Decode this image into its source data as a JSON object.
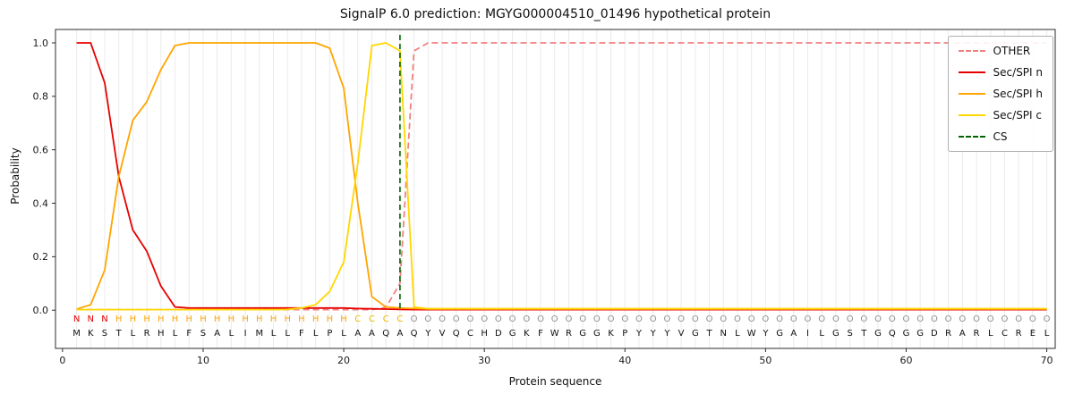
{
  "chart_data": {
    "type": "line",
    "title": "SignalP 6.0 prediction: MGYG000004510_01496 hypothetical protein",
    "xlabel": "Protein sequence",
    "ylabel": "Probability",
    "xlim": [
      -0.5,
      70.6
    ],
    "ylim": [
      -0.143,
      1.05
    ],
    "xticks": [
      0,
      10,
      20,
      30,
      40,
      50,
      60,
      70
    ],
    "yticks": [
      0.0,
      0.2,
      0.4,
      0.6,
      0.8,
      1.0
    ],
    "grid": "vertical-line-per-residue",
    "legend_position": "upper right",
    "positions": [
      1,
      2,
      3,
      4,
      5,
      6,
      7,
      8,
      9,
      10,
      11,
      12,
      13,
      14,
      15,
      16,
      17,
      18,
      19,
      20,
      21,
      22,
      23,
      24,
      25,
      26,
      27,
      28,
      29,
      30,
      31,
      32,
      33,
      34,
      35,
      36,
      37,
      38,
      39,
      40,
      41,
      42,
      43,
      44,
      45,
      46,
      47,
      48,
      49,
      50,
      51,
      52,
      53,
      54,
      55,
      56,
      57,
      58,
      59,
      60,
      61,
      62,
      63,
      64,
      65,
      66,
      67,
      68,
      69,
      70
    ],
    "series": [
      {
        "name": "OTHER",
        "color": "#f08080",
        "style": "dashed",
        "values": [
          0.002,
          0.002,
          0.002,
          0.002,
          0.002,
          0.002,
          0.002,
          0.002,
          0.002,
          0.002,
          0.002,
          0.002,
          0.002,
          0.002,
          0.002,
          0.002,
          0.002,
          0.002,
          0.002,
          0.002,
          0.002,
          0.002,
          0.01,
          0.1,
          0.97,
          1.0,
          1.0,
          1.0,
          1.0,
          1.0,
          1.0,
          1.0,
          1.0,
          1.0,
          1.0,
          1.0,
          1.0,
          1.0,
          1.0,
          1.0,
          1.0,
          1.0,
          1.0,
          1.0,
          1.0,
          1.0,
          1.0,
          1.0,
          1.0,
          1.0,
          1.0,
          1.0,
          1.0,
          1.0,
          1.0,
          1.0,
          1.0,
          1.0,
          1.0,
          1.0,
          1.0,
          1.0,
          1.0,
          1.0,
          1.0,
          1.0,
          1.0,
          1.0,
          1.0,
          1.0
        ]
      },
      {
        "name": "Sec/SPI n",
        "color": "#e60000",
        "style": "solid",
        "values": [
          1.0,
          1.0,
          0.85,
          0.5,
          0.3,
          0.22,
          0.09,
          0.012,
          0.008,
          0.008,
          0.008,
          0.008,
          0.008,
          0.008,
          0.008,
          0.008,
          0.008,
          0.008,
          0.008,
          0.008,
          0.006,
          0.005,
          0.004,
          0.003,
          0.002,
          0.002,
          0.002,
          0.002,
          0.002,
          0.002,
          0.002,
          0.002,
          0.002,
          0.002,
          0.002,
          0.002,
          0.002,
          0.002,
          0.002,
          0.002,
          0.002,
          0.002,
          0.002,
          0.002,
          0.002,
          0.002,
          0.002,
          0.002,
          0.002,
          0.002,
          0.002,
          0.002,
          0.002,
          0.002,
          0.002,
          0.002,
          0.002,
          0.002,
          0.002,
          0.002,
          0.002,
          0.002,
          0.002,
          0.002,
          0.002,
          0.002,
          0.002,
          0.002,
          0.002,
          0.002
        ]
      },
      {
        "name": "Sec/SPI h",
        "color": "#ffa500",
        "style": "solid",
        "values": [
          0.004,
          0.02,
          0.15,
          0.5,
          0.71,
          0.78,
          0.9,
          0.99,
          1.0,
          1.0,
          1.0,
          1.0,
          1.0,
          1.0,
          1.0,
          1.0,
          1.0,
          1.0,
          0.98,
          0.83,
          0.4,
          0.05,
          0.012,
          0.008,
          0.006,
          0.005,
          0.005,
          0.005,
          0.005,
          0.005,
          0.005,
          0.005,
          0.005,
          0.005,
          0.005,
          0.005,
          0.005,
          0.005,
          0.005,
          0.005,
          0.005,
          0.005,
          0.005,
          0.005,
          0.005,
          0.005,
          0.005,
          0.005,
          0.005,
          0.005,
          0.005,
          0.005,
          0.005,
          0.005,
          0.005,
          0.005,
          0.005,
          0.005,
          0.005,
          0.005,
          0.005,
          0.005,
          0.005,
          0.005,
          0.005,
          0.005,
          0.005,
          0.005,
          0.005,
          0.005
        ]
      },
      {
        "name": "Sec/SPI c",
        "color": "#ffd700",
        "style": "solid",
        "values": [
          0.002,
          0.002,
          0.002,
          0.002,
          0.002,
          0.002,
          0.002,
          0.002,
          0.002,
          0.002,
          0.002,
          0.002,
          0.002,
          0.002,
          0.002,
          0.003,
          0.008,
          0.02,
          0.07,
          0.18,
          0.55,
          0.99,
          1.0,
          0.97,
          0.012,
          0.005,
          0.005,
          0.005,
          0.005,
          0.005,
          0.005,
          0.005,
          0.005,
          0.005,
          0.005,
          0.005,
          0.005,
          0.005,
          0.005,
          0.005,
          0.005,
          0.005,
          0.005,
          0.005,
          0.005,
          0.005,
          0.005,
          0.005,
          0.005,
          0.005,
          0.005,
          0.005,
          0.005,
          0.005,
          0.005,
          0.005,
          0.005,
          0.005,
          0.005,
          0.005,
          0.005,
          0.005,
          0.005,
          0.005,
          0.005,
          0.005,
          0.005,
          0.005,
          0.005,
          0.005
        ]
      }
    ],
    "cs_line": {
      "name": "CS",
      "position": 24,
      "color": "#006400",
      "style": "dashed"
    },
    "legend": [
      {
        "label": "OTHER",
        "color": "#f08080",
        "dash": true
      },
      {
        "label": "Sec/SPI n",
        "color": "#e60000",
        "dash": false
      },
      {
        "label": "Sec/SPI h",
        "color": "#ffa500",
        "dash": false
      },
      {
        "label": "Sec/SPI c",
        "color": "#ffd700",
        "dash": false
      },
      {
        "label": "CS",
        "color": "#006400",
        "dash": true
      }
    ],
    "sequence": "MKSTLRHLFSALIMLLFLPLAAQAQYVQCHDGKFWRGGKPYYYVGTNLWYGAILGSTGQGGDRARLCREL",
    "regions": [
      {
        "label": "N",
        "start": 1,
        "end": 3
      },
      {
        "label": "H",
        "start": 4,
        "end": 20
      },
      {
        "label": "C",
        "start": 21,
        "end": 24
      },
      {
        "label": "O",
        "start": 25,
        "end": 70
      }
    ],
    "region_colors": {
      "N": "#e60000",
      "H": "#ffa500",
      "C": "#e8b800",
      "O": "#8f8f8f"
    },
    "sequence_color": "#111111"
  }
}
